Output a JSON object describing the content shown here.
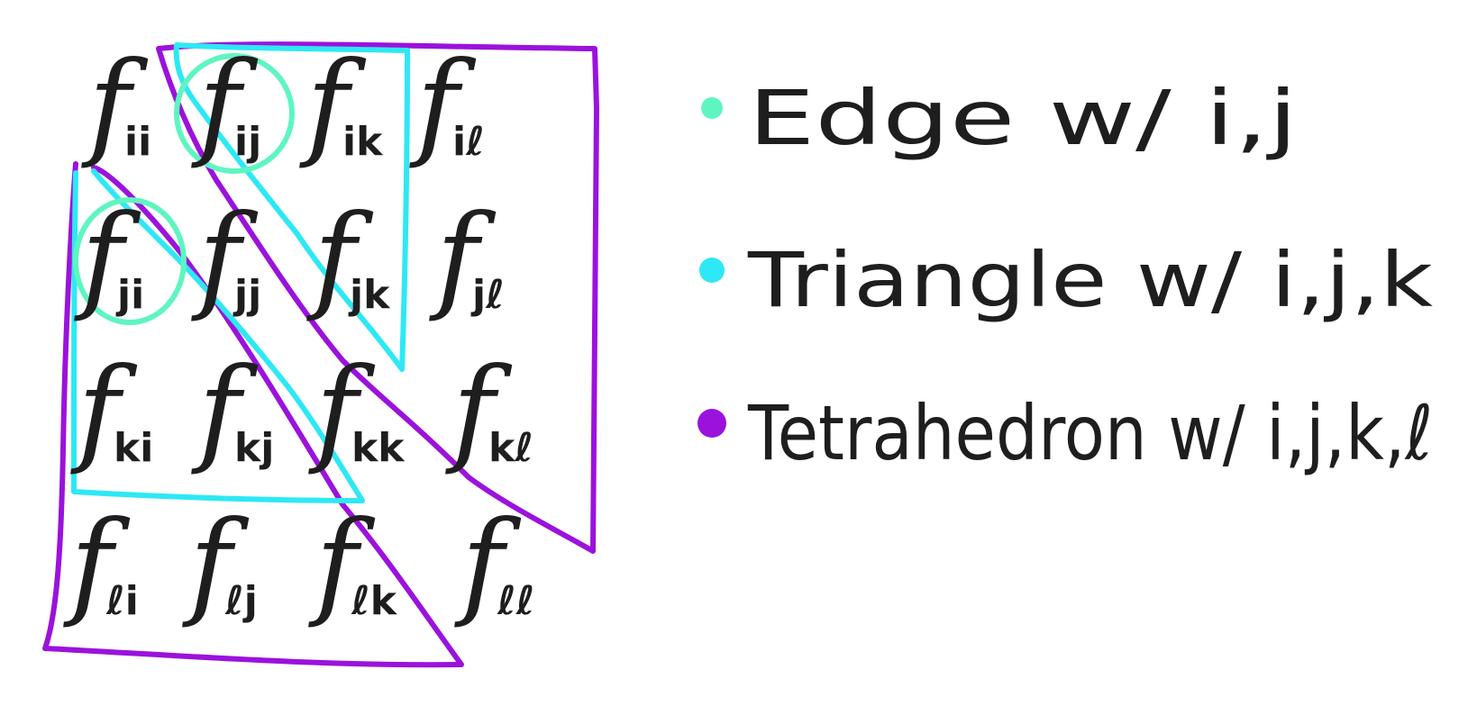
{
  "matrix": {
    "rows": [
      [
        {
          "base": "f",
          "sub": "ii"
        },
        {
          "base": "f",
          "sub": "ij"
        },
        {
          "base": "f",
          "sub": "ik"
        },
        {
          "base": "f",
          "sub": "iℓ"
        }
      ],
      [
        {
          "base": "f",
          "sub": "ji"
        },
        {
          "base": "f",
          "sub": "jj"
        },
        {
          "base": "f",
          "sub": "jk"
        },
        {
          "base": "f",
          "sub": "jℓ"
        }
      ],
      [
        {
          "base": "f",
          "sub": "ki"
        },
        {
          "base": "f",
          "sub": "kj"
        },
        {
          "base": "f",
          "sub": "kk"
        },
        {
          "base": "f",
          "sub": "kℓ"
        }
      ],
      [
        {
          "base": "f",
          "sub": "ℓi"
        },
        {
          "base": "f",
          "sub": "ℓj"
        },
        {
          "base": "f",
          "sub": "ℓk"
        },
        {
          "base": "f",
          "sub": "ℓℓ"
        }
      ]
    ]
  },
  "legend": [
    {
      "label": "Edge w/ i,j",
      "color": "#5ff5c0"
    },
    {
      "label": "Triangle w/ i,j,k",
      "color": "#2ee8f5"
    },
    {
      "label": "Tetrahedron w/ i,j,k,ℓ",
      "color": "#9b12dc"
    }
  ],
  "colors": {
    "ink": "#1e1e1e",
    "edge": "#5ff5c0",
    "triangle": "#2ee8f5",
    "tetrahedron": "#9b12dc"
  }
}
